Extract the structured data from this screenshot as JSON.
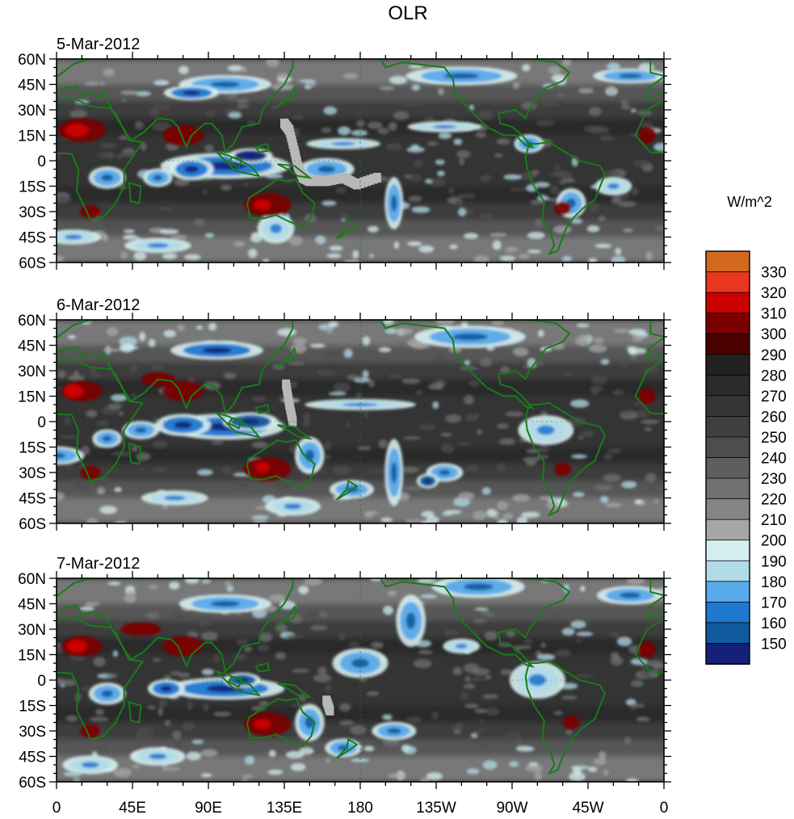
{
  "title": "OLR",
  "colorbar": {
    "units": "W/m^2",
    "levels": [
      330,
      320,
      310,
      300,
      290,
      280,
      270,
      260,
      250,
      240,
      230,
      220,
      210,
      200,
      190,
      180,
      170,
      160,
      150
    ],
    "colors": [
      "#d2691e",
      "#e8361f",
      "#cc0000",
      "#7a0000",
      "#4a0000",
      "#222222",
      "#2b2b2b",
      "#353535",
      "#404040",
      "#4d4d4d",
      "#5e5e5e",
      "#707070",
      "#858585",
      "#a6a6a6",
      "#d6eef0",
      "#b2dbe8",
      "#5aaaea",
      "#1f78d1",
      "#105aa0",
      "#14207a"
    ]
  },
  "chart_data": {
    "type": "heatmap",
    "title": "OLR",
    "units": "W/m^2",
    "x_tick_labels": [
      "0",
      "45E",
      "90E",
      "135E",
      "180",
      "135W",
      "90W",
      "45W",
      "0"
    ],
    "y_tick_labels": [
      "60N",
      "45N",
      "30N",
      "15N",
      "0",
      "15S",
      "30S",
      "45S",
      "60S"
    ],
    "xlim": [
      0,
      360
    ],
    "ylim": [
      -60,
      60
    ],
    "panels": [
      {
        "date": "5-Mar-2012"
      },
      {
        "date": "6-Mar-2012"
      },
      {
        "date": "7-Mar-2012"
      }
    ]
  }
}
